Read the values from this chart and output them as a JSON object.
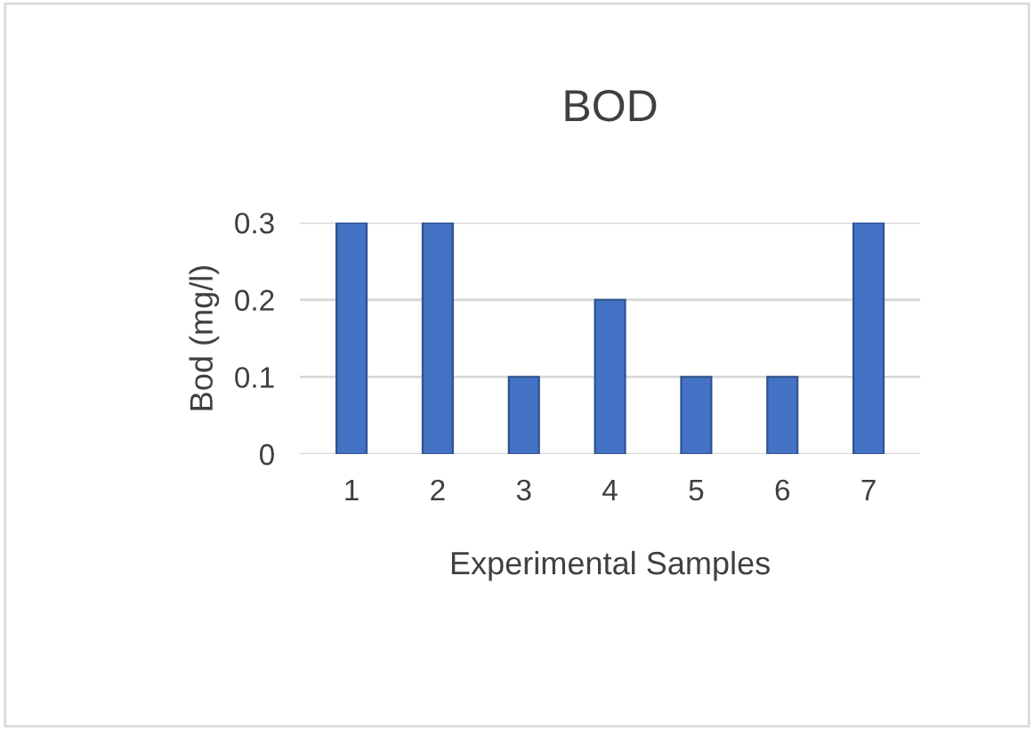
{
  "chart_data": {
    "type": "bar",
    "title": "BOD",
    "xlabel": "Experimental Samples",
    "ylabel": "Bod (mg/l)",
    "categories": [
      "1",
      "2",
      "3",
      "4",
      "5",
      "6",
      "7"
    ],
    "values": [
      0.3,
      0.3,
      0.1,
      0.2,
      0.1,
      0.1,
      0.3
    ],
    "color": "#4472c4",
    "ylim": [
      0,
      0.3
    ],
    "yticks": [
      0,
      0.1,
      0.2,
      0.3
    ],
    "grid": "y"
  }
}
